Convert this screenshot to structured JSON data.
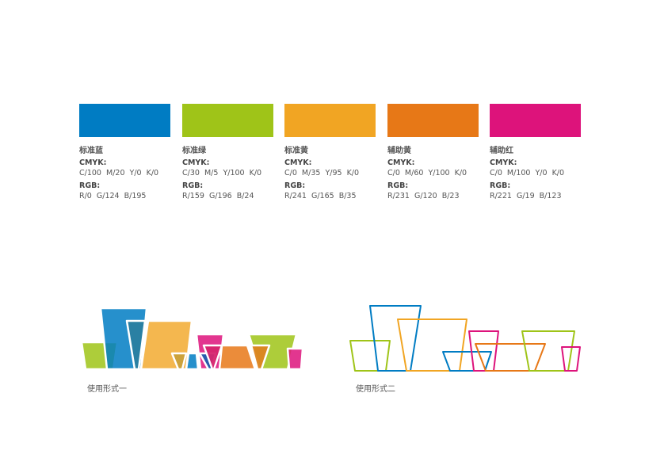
{
  "swatches": [
    {
      "name": "标准蓝",
      "cmyk_label": "CMYK:",
      "cmyk": "C/100  M/20  Y/0  K/0",
      "rgb_label": "RGB:",
      "rgb": "R/0  G/124  B/195",
      "color": "#007CC3"
    },
    {
      "name": "标准绿",
      "cmyk_label": "CMYK:",
      "cmyk": "C/30  M/5  Y/100  K/0",
      "rgb_label": "RGB:",
      "rgb": "R/159  G/196  B/24",
      "color": "#9FC418"
    },
    {
      "name": "标准黄",
      "cmyk_label": "CMYK:",
      "cmyk": "C/0  M/35  Y/95  K/0",
      "rgb_label": "RGB:",
      "rgb": "R/241  G/165  B/35",
      "color": "#F1A523"
    },
    {
      "name": "辅助黄",
      "cmyk_label": "CMYK:",
      "cmyk": "C/0  M/60  Y/100  K/0",
      "rgb_label": "RGB:",
      "rgb": "R/231  G/120  B/23",
      "color": "#E77817"
    },
    {
      "name": "辅助红",
      "cmyk_label": "CMYK:",
      "cmyk": "C/0  M/100  Y/0  K/0",
      "rgb_label": "RGB:",
      "rgb": "R/221  G/19  B/123",
      "color": "#DD137B"
    }
  ],
  "usage": [
    {
      "caption": "使用形式一",
      "style": "filled"
    },
    {
      "caption": "使用形式二",
      "style": "outline"
    }
  ]
}
